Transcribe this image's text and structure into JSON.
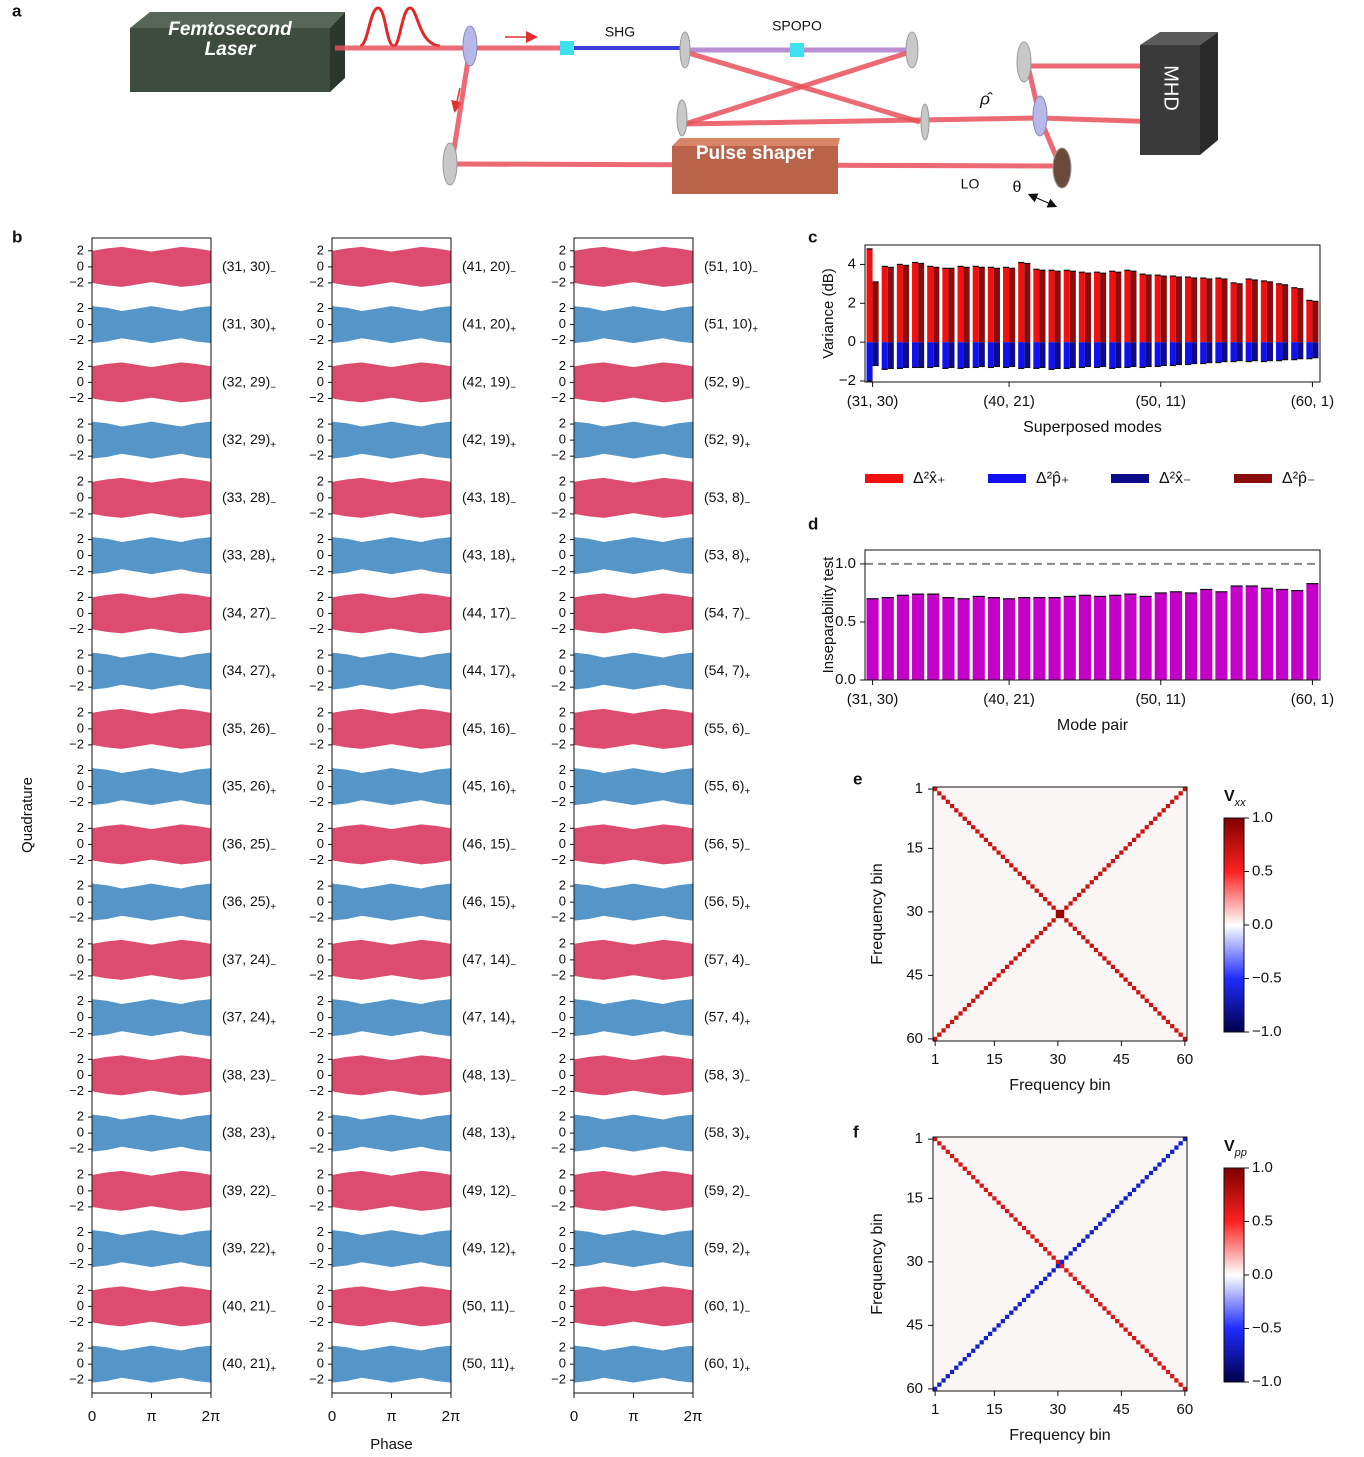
{
  "diagram": {
    "panel": "a",
    "laser": [
      "Femtosecond",
      "Laser"
    ],
    "shg": "SHG",
    "spopo": "SPOPO",
    "rho": "ρ̂",
    "pulse_shaper": "Pulse shaper",
    "lo": "LO",
    "theta": "θ",
    "mhd": "MHD"
  },
  "chart_data": [
    {
      "type": "band-grid",
      "panel": "b",
      "xlabel": "Phase",
      "ylabel": "Quadrature",
      "xlim": [
        0,
        6.2832
      ],
      "xticks": [
        0,
        {
          "value": 3.1416,
          "label": "π"
        },
        {
          "value": 6.2832,
          "label": "2π"
        }
      ],
      "ylim": [
        -3.6,
        3.6
      ],
      "yticks": [
        {
          "value": -2,
          "label": "−2"
        },
        0,
        2
      ],
      "signs": [
        "−",
        "+"
      ],
      "columns": [
        {
          "pairs": [
            "(31, 30)",
            "(32, 29)",
            "(33, 28)",
            "(34, 27)",
            "(35, 26)",
            "(36, 25)",
            "(37, 24)",
            "(38, 23)",
            "(39, 22)",
            "(40, 21)"
          ]
        },
        {
          "pairs": [
            "(41, 20)",
            "(42, 19)",
            "(43, 18)",
            "(44, 17)",
            "(45, 16)",
            "(46, 15)",
            "(47, 14)",
            "(48, 13)",
            "(49, 12)",
            "(50, 11)"
          ]
        },
        {
          "pairs": [
            "(51, 10)",
            "(52, 9)",
            "(53, 8)",
            "(54, 7)",
            "(55, 6)",
            "(56, 5)",
            "(57, 4)",
            "(58, 3)",
            "(59, 2)",
            "(60, 1)"
          ]
        }
      ],
      "bands": [
        {
          "color": "#d41f4a",
          "x": [
            0,
            0.7854,
            1.5708,
            2.3562,
            3.1416,
            3.927,
            4.7124,
            5.4978,
            6.2832
          ],
          "upper": [
            2.0,
            2.3,
            2.5,
            2.2,
            1.9,
            2.2,
            2.5,
            2.3,
            2.0
          ],
          "lower": [
            -2.0,
            -2.3,
            -2.5,
            -2.2,
            -1.9,
            -2.2,
            -2.5,
            -2.3,
            -2.0
          ]
        },
        {
          "color": "#2b7bb9",
          "x": [
            0,
            0.7854,
            1.5708,
            2.3562,
            3.1416,
            3.927,
            4.7124,
            5.4978,
            6.2832
          ],
          "upper": [
            2.3,
            2.1,
            1.7,
            2.0,
            2.3,
            2.0,
            1.7,
            2.1,
            2.3
          ],
          "lower": [
            -2.3,
            -2.1,
            -1.7,
            -2.0,
            -2.3,
            -2.0,
            -1.7,
            -2.1,
            -2.3
          ]
        }
      ]
    },
    {
      "type": "bar",
      "panel": "c",
      "ylabel": "Variance (dB)",
      "xlabel": "Superposed modes",
      "categories": [
        "(31, 30)",
        null,
        null,
        null,
        null,
        null,
        null,
        null,
        null,
        "(40, 21)",
        null,
        null,
        null,
        null,
        null,
        null,
        null,
        null,
        null,
        "(50, 11)",
        null,
        null,
        null,
        null,
        null,
        null,
        null,
        null,
        null,
        "(60, 1)"
      ],
      "ylim": [
        -2.05,
        5
      ],
      "yticks": [
        {
          "value": -2,
          "label": "−2"
        },
        0,
        2,
        4
      ],
      "series": [
        {
          "name": "Δ²x̂₊",
          "color": "#f01010",
          "values": [
            4.8,
            3.9,
            4.0,
            4.1,
            3.9,
            3.8,
            3.9,
            3.9,
            3.85,
            3.85,
            4.1,
            3.75,
            3.7,
            3.7,
            3.6,
            3.6,
            3.65,
            3.7,
            3.5,
            3.45,
            3.4,
            3.35,
            3.3,
            3.3,
            3.05,
            3.25,
            3.15,
            3.0,
            2.8,
            2.15
          ]
        },
        {
          "name": "Δ²p̂₊",
          "color": "#1010f0",
          "values": [
            -2.0,
            -1.4,
            -1.35,
            -1.3,
            -1.3,
            -1.35,
            -1.35,
            -1.3,
            -1.3,
            -1.3,
            -1.35,
            -1.35,
            -1.4,
            -1.35,
            -1.3,
            -1.3,
            -1.35,
            -1.3,
            -1.3,
            -1.25,
            -1.2,
            -1.15,
            -1.1,
            -1.05,
            -1.0,
            -1.0,
            -1.0,
            -0.95,
            -0.9,
            -0.85
          ]
        },
        {
          "name": "Δ²x̂₋",
          "color": "#0c0c8a",
          "values": [
            -1.2,
            -1.35,
            -1.3,
            -1.3,
            -1.25,
            -1.3,
            -1.3,
            -1.25,
            -1.25,
            -1.25,
            -1.3,
            -1.3,
            -1.35,
            -1.3,
            -1.25,
            -1.25,
            -1.3,
            -1.25,
            -1.25,
            -1.2,
            -1.15,
            -1.1,
            -1.05,
            -1.0,
            -0.95,
            -0.95,
            -0.95,
            -0.9,
            -0.85,
            -0.8
          ]
        },
        {
          "name": "Δ²p̂₋",
          "color": "#8a0c0c",
          "values": [
            3.1,
            3.85,
            3.95,
            4.05,
            3.85,
            3.8,
            3.85,
            3.85,
            3.8,
            3.8,
            4.05,
            3.7,
            3.65,
            3.65,
            3.55,
            3.55,
            3.6,
            3.65,
            3.45,
            3.4,
            3.35,
            3.3,
            3.25,
            3.25,
            3.0,
            3.2,
            3.1,
            2.95,
            2.75,
            2.1
          ]
        }
      ]
    },
    {
      "type": "bar",
      "panel": "d",
      "ylabel": "Inseparability test",
      "xlabel": "Mode pair",
      "categories": [
        "(31, 30)",
        null,
        null,
        null,
        null,
        null,
        null,
        null,
        null,
        "(40, 21)",
        null,
        null,
        null,
        null,
        null,
        null,
        null,
        null,
        null,
        "(50, 11)",
        null,
        null,
        null,
        null,
        null,
        null,
        null,
        null,
        null,
        "(60, 1)"
      ],
      "ylim": [
        0,
        1.12
      ],
      "yticks": [
        {
          "value": 0,
          "label": "0.0"
        },
        0.5,
        {
          "value": 1,
          "label": "1.0"
        }
      ],
      "reference_line": 1,
      "series": [
        {
          "color": "#c400c8",
          "values": [
            0.7,
            0.71,
            0.73,
            0.74,
            0.74,
            0.71,
            0.7,
            0.72,
            0.71,
            0.7,
            0.71,
            0.71,
            0.71,
            0.72,
            0.73,
            0.72,
            0.73,
            0.74,
            0.72,
            0.75,
            0.76,
            0.75,
            0.78,
            0.76,
            0.81,
            0.81,
            0.79,
            0.78,
            0.77,
            0.83
          ]
        }
      ]
    },
    {
      "type": "heatmap",
      "panel": "e",
      "xlabel": "Frequency bin",
      "ylabel": "Frequency bin",
      "colorbar_label": "V",
      "colorbar_sub": "xx",
      "xlim": [
        0.5,
        60.5
      ],
      "ylim": [
        0.5,
        60.5
      ],
      "xticks": [
        1,
        15,
        30,
        45,
        60
      ],
      "yticks": [
        1,
        15,
        30,
        45,
        60
      ],
      "clim": [
        -1,
        1
      ],
      "cticks": [
        {
          "value": -1,
          "label": "−1.0"
        },
        {
          "value": -0.5,
          "label": "−0.5"
        },
        {
          "value": 0,
          "label": "0.0"
        },
        0.5,
        {
          "value": 1,
          "label": "1.0"
        }
      ],
      "diagonal": [
        0.7,
        0.7,
        0.7,
        0.7,
        0.7,
        0.7,
        0.7,
        0.7,
        0.7,
        0.7,
        0.7,
        0.7,
        0.7,
        0.7,
        0.7,
        0.7,
        0.7,
        0.7,
        0.7,
        0.7,
        0.7,
        0.7,
        0.7,
        0.7,
        0.7,
        0.7,
        0.7,
        0.7,
        0.7,
        0.9,
        0.9,
        0.7,
        0.7,
        0.7,
        0.7,
        0.7,
        0.7,
        0.7,
        0.7,
        0.7,
        0.7,
        0.7,
        0.7,
        0.7,
        0.7,
        0.7,
        0.7,
        0.7,
        0.7,
        0.7,
        0.7,
        0.7,
        0.7,
        0.7,
        0.7,
        0.7,
        0.7,
        0.7,
        0.7,
        0.7
      ],
      "anti_diagonal": [
        0.7,
        0.7,
        0.7,
        0.7,
        0.7,
        0.7,
        0.7,
        0.7,
        0.7,
        0.7,
        0.7,
        0.7,
        0.7,
        0.7,
        0.7,
        0.7,
        0.7,
        0.7,
        0.7,
        0.7,
        0.7,
        0.7,
        0.7,
        0.7,
        0.7,
        0.7,
        0.7,
        0.7,
        0.7,
        0.9,
        0.9,
        0.7,
        0.7,
        0.7,
        0.7,
        0.7,
        0.7,
        0.7,
        0.7,
        0.7,
        0.7,
        0.7,
        0.7,
        0.7,
        0.7,
        0.7,
        0.7,
        0.7,
        0.7,
        0.7,
        0.7,
        0.7,
        0.7,
        0.7,
        0.7,
        0.7,
        0.7,
        0.7,
        0.7,
        0.7
      ]
    },
    {
      "type": "heatmap",
      "panel": "f",
      "xlabel": "Frequency bin",
      "ylabel": "Frequency bin",
      "colorbar_label": "V",
      "colorbar_sub": "pp",
      "xlim": [
        0.5,
        60.5
      ],
      "ylim": [
        0.5,
        60.5
      ],
      "xticks": [
        1,
        15,
        30,
        45,
        60
      ],
      "yticks": [
        1,
        15,
        30,
        45,
        60
      ],
      "clim": [
        -1,
        1
      ],
      "cticks": [
        {
          "value": -1,
          "label": "−1.0"
        },
        {
          "value": -0.5,
          "label": "−0.5"
        },
        {
          "value": 0,
          "label": "0.0"
        },
        0.5,
        {
          "value": 1,
          "label": "1.0"
        }
      ],
      "diagonal": [
        0.65,
        0.65,
        0.65,
        0.65,
        0.65,
        0.65,
        0.65,
        0.65,
        0.65,
        0.65,
        0.65,
        0.65,
        0.65,
        0.65,
        0.65,
        0.65,
        0.65,
        0.65,
        0.65,
        0.65,
        0.65,
        0.65,
        0.65,
        0.65,
        0.65,
        0.65,
        0.65,
        0.65,
        0.65,
        0.65,
        0.65,
        0.65,
        0.65,
        0.65,
        0.65,
        0.65,
        0.65,
        0.65,
        0.65,
        0.65,
        0.65,
        0.65,
        0.65,
        0.65,
        0.65,
        0.65,
        0.65,
        0.65,
        0.65,
        0.65,
        0.65,
        0.65,
        0.65,
        0.65,
        0.65,
        0.65,
        0.65,
        0.65,
        0.65,
        0.65
      ],
      "anti_diagonal": [
        -0.65,
        -0.65,
        -0.65,
        -0.65,
        -0.65,
        -0.65,
        -0.65,
        -0.65,
        -0.65,
        -0.65,
        -0.65,
        -0.65,
        -0.65,
        -0.65,
        -0.65,
        -0.65,
        -0.65,
        -0.65,
        -0.65,
        -0.65,
        -0.65,
        -0.65,
        -0.65,
        -0.65,
        -0.65,
        -0.65,
        -0.65,
        -0.65,
        -0.65,
        -0.65,
        -0.65,
        -0.65,
        -0.65,
        -0.65,
        -0.65,
        -0.65,
        -0.65,
        -0.65,
        -0.65,
        -0.65,
        -0.65,
        -0.65,
        -0.65,
        -0.65,
        -0.65,
        -0.65,
        -0.65,
        -0.65,
        -0.65,
        -0.65,
        -0.65,
        -0.65,
        -0.65,
        -0.65,
        -0.65,
        -0.65,
        -0.65,
        -0.65,
        -0.65,
        -0.65
      ]
    }
  ]
}
